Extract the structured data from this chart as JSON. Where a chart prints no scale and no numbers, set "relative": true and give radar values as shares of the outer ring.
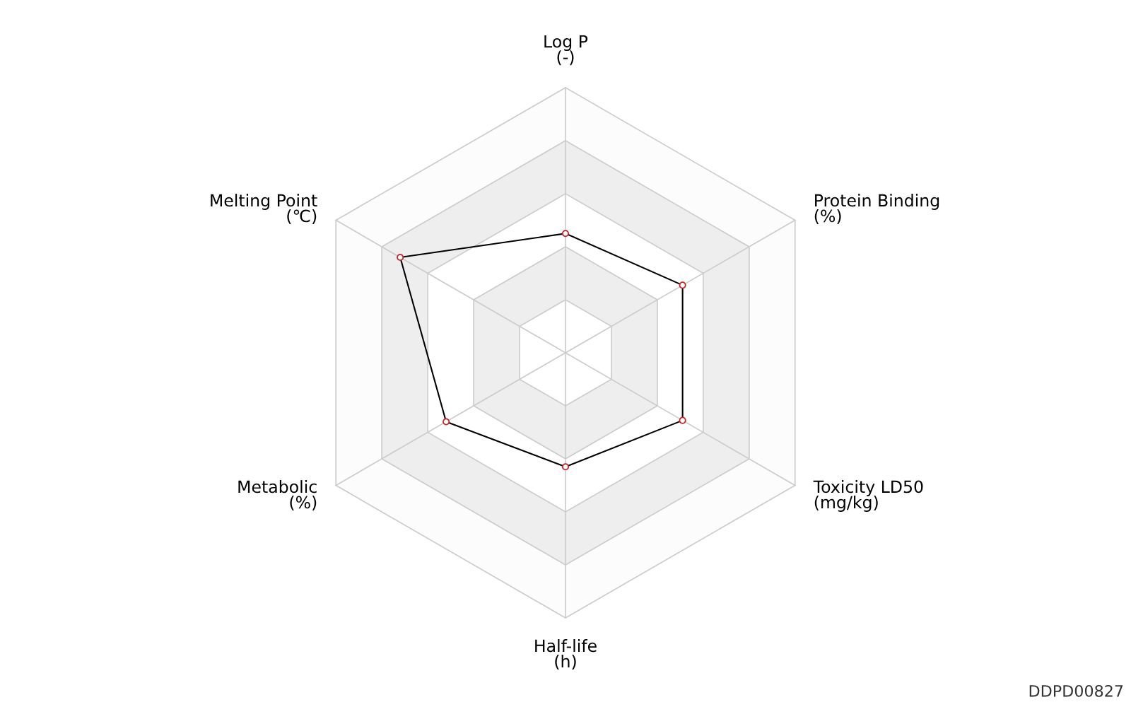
{
  "chart_data": {
    "type": "radar",
    "relative": true,
    "categories": [
      "Log P\n(-)",
      "Protein Binding\n(%)",
      "Toxicity LD50\n(mg/kg)",
      "Half-life\n(h)",
      "Metabolic\n(%)",
      "Melting Point\n(℃)"
    ],
    "series": [
      {
        "color": "#000000",
        "values": [
          0.45,
          0.51,
          0.51,
          0.43,
          0.52,
          0.72
        ]
      }
    ],
    "marker": "circle",
    "annotations": [
      "DDPD00827"
    ]
  }
}
